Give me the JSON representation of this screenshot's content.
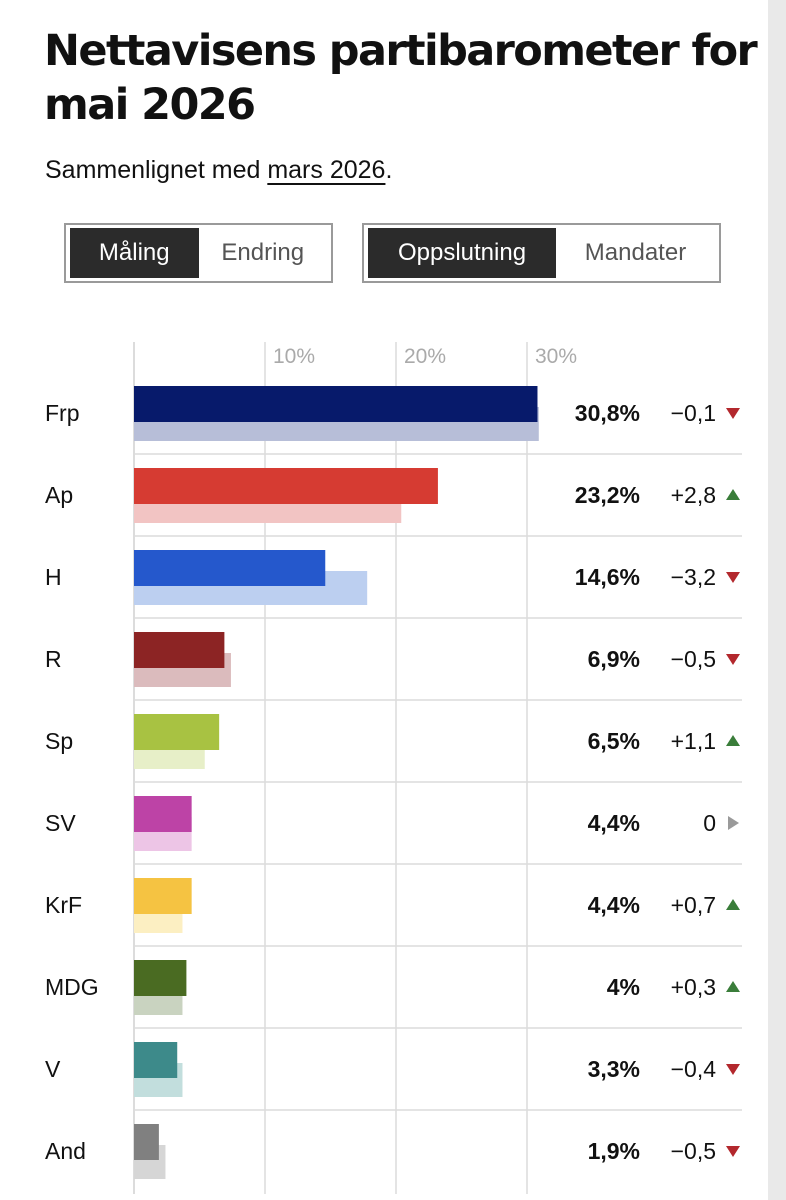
{
  "title": "Nettavisens partibarometer for mai 2026",
  "subtitle": {
    "prefix": "Sammenlignet med ",
    "link": "mars 2026",
    "suffix": "."
  },
  "view_toggle": {
    "options": [
      "Måling",
      "Endring"
    ],
    "selected": "Måling"
  },
  "metric_toggle": {
    "options": [
      "Oppslutning",
      "Mandater"
    ],
    "selected": "Oppslutning"
  },
  "colors": {
    "up": "#3a7d3a",
    "down": "#b3282d",
    "neutral": "#9a9a9a",
    "grid": "#dcdcdc",
    "axis_text": "#aaaaaa"
  },
  "chart_data": {
    "type": "bar",
    "orientation": "horizontal",
    "xlim": [
      0,
      30
    ],
    "x_ticks": [
      "10%",
      "20%",
      "30%"
    ],
    "x_tick_values": [
      10,
      20,
      30
    ],
    "categories": [
      "Frp",
      "Ap",
      "H",
      "R",
      "Sp",
      "SV",
      "KrF",
      "MDG",
      "V",
      "And"
    ],
    "series": [
      {
        "role": "current",
        "values": [
          30.8,
          23.2,
          14.6,
          6.9,
          6.5,
          4.4,
          4.4,
          4.0,
          3.3,
          1.9
        ]
      },
      {
        "role": "previous",
        "values": [
          30.9,
          20.4,
          17.8,
          7.4,
          5.4,
          4.4,
          3.7,
          3.7,
          3.7,
          2.4
        ]
      }
    ],
    "value_labels": [
      "30,8%",
      "23,2%",
      "14,6%",
      "6,9%",
      "6,5%",
      "4,4%",
      "4,4%",
      "4%",
      "3,3%",
      "1,9%"
    ],
    "change_labels": [
      "−0,1",
      "+2,8",
      "−3,2",
      "−0,5",
      "+1,1",
      "0",
      "+0,7",
      "+0,3",
      "−0,4",
      "−0,5"
    ],
    "change_direction": [
      "down",
      "up",
      "down",
      "down",
      "up",
      "neutral",
      "up",
      "up",
      "down",
      "down"
    ],
    "bar_colors": [
      "#071a6b",
      "#d63b32",
      "#2558cc",
      "#8c2424",
      "#a8c242",
      "#bd43a6",
      "#f5c342",
      "#4a6b22",
      "#3d8a8a",
      "#808080"
    ],
    "prev_bar_colors": [
      "#b7bed8",
      "#f2c4c3",
      "#bccff0",
      "#dbbbbd",
      "#e7efc8",
      "#edc5e6",
      "#fcefc2",
      "#c9d3c0",
      "#c2dedd",
      "#d6d6d6"
    ]
  }
}
